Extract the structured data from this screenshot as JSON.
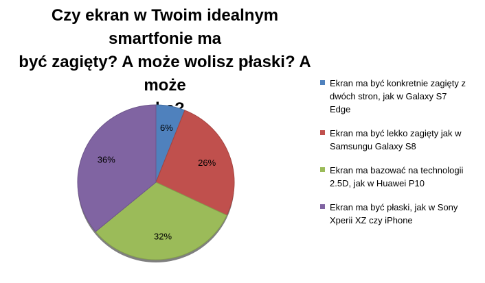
{
  "title_lines": [
    "Czy ekran w Twoim idealnym smartfonie ma",
    "być zagięty? A może wolisz płaski? A może",
    "oba?"
  ],
  "chart_data": {
    "type": "pie",
    "title": "Czy ekran w Twoim idealnym smartfonie ma być zagięty? A może wolisz płaski? A może oba?",
    "labels": [
      "Ekran ma być konkretnie zagięty z dwóch stron, jak w Galaxy S7 Edge",
      "Ekran ma być lekko zagięty jak w Samsungu Galaxy S8",
      "Ekran ma bazować na technologii 2.5D, jak w Huawei P10",
      "Ekran ma być płaski, jak w Sony Xperii XZ czy iPhone"
    ],
    "values": [
      6,
      26,
      32,
      36
    ],
    "value_labels": [
      "6%",
      "26%",
      "32%",
      "36%"
    ],
    "colors": [
      "#4f81bd",
      "#c0504d",
      "#9bbb59",
      "#8064a2"
    ],
    "legend_position": "right"
  },
  "legend": [
    {
      "lines": [
        "Ekran ma być konkretnie zagięty z",
        "dwóch stron, jak w Galaxy S7",
        "Edge"
      ]
    },
    {
      "lines": [
        "Ekran ma być lekko zagięty jak w",
        "Samsungu Galaxy S8"
      ]
    },
    {
      "lines": [
        "Ekran ma bazować na technologii",
        "2.5D, jak w Huawei P10"
      ]
    },
    {
      "lines": [
        "Ekran ma być płaski, jak w Sony",
        "Xperii XZ czy iPhone"
      ]
    }
  ]
}
